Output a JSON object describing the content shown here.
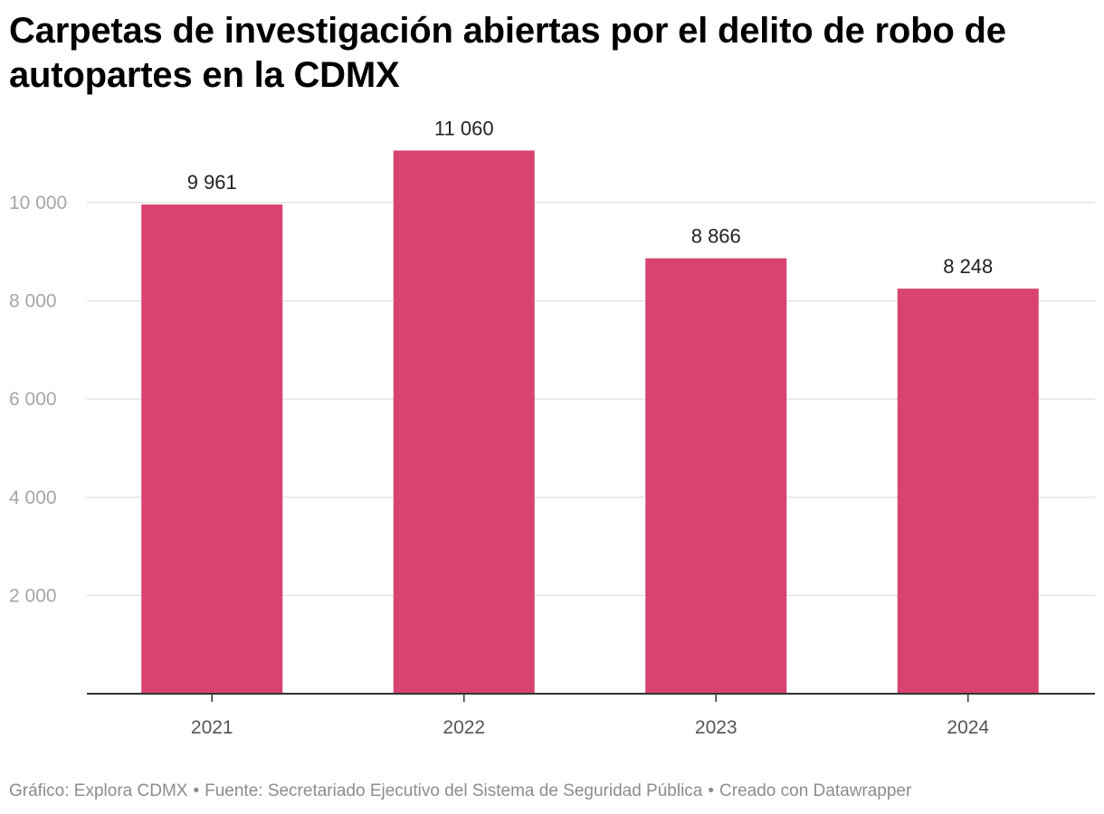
{
  "chart_data": {
    "type": "bar",
    "title": "Carpetas de investigación abiertas por el delito de robo de autopartes en la CDMX",
    "categories": [
      "2021",
      "2022",
      "2023",
      "2024"
    ],
    "values": [
      9961,
      11060,
      8866,
      8248
    ],
    "value_labels": [
      "9 961",
      "11 060",
      "8 866",
      "8 248"
    ],
    "y_ticks": [
      2000,
      4000,
      6000,
      8000,
      10000
    ],
    "y_tick_labels": [
      "2 000",
      "4 000",
      "6 000",
      "8 000",
      "10 000"
    ],
    "ylim": [
      0,
      11060
    ],
    "xlabel": "",
    "ylabel": "",
    "grid": true,
    "legend": "none",
    "bar_color": "#d9436f"
  },
  "footer": {
    "credit": "Gráfico: Explora CDMX",
    "source": "Fuente: Secretariado Ejecutivo del Sistema de Seguridad Pública",
    "tool": "Creado con Datawrapper",
    "separator": "•"
  }
}
